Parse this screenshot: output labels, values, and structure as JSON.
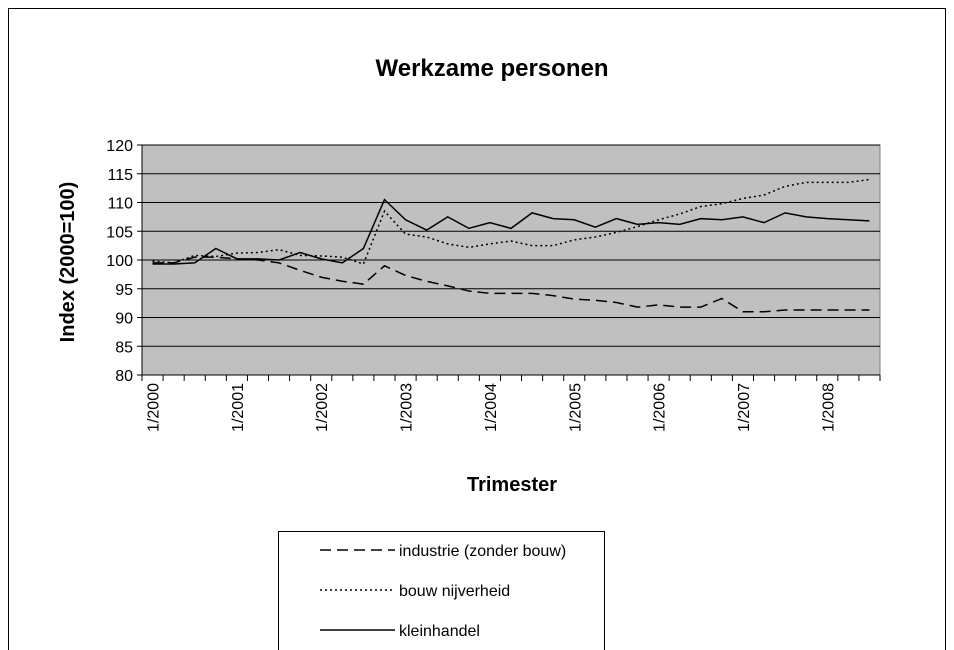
{
  "chart_data": {
    "type": "line",
    "title": "Werkzame personen",
    "x_label": "Trimester",
    "y_label": "Index (2000=100)",
    "categories": [
      "1/2000",
      null,
      null,
      null,
      "1/2001",
      null,
      null,
      null,
      "1/2002",
      null,
      null,
      null,
      "1/2003",
      null,
      null,
      null,
      "1/2004",
      null,
      null,
      null,
      "1/2005",
      null,
      null,
      null,
      "1/2006",
      null,
      null,
      null,
      "1/2007",
      null,
      null,
      null,
      "1/2008",
      null,
      null
    ],
    "series": [
      {
        "name": "industrie (zonder bouw)",
        "color": "#000000",
        "dash": "dashed",
        "values": [
          99.5,
          99.5,
          100.5,
          100.5,
          100.2,
          100,
          99.5,
          98.2,
          97,
          96.3,
          95.8,
          99,
          97.3,
          96.3,
          95.5,
          94.6,
          94.2,
          94.2,
          94.2,
          93.8,
          93.2,
          93,
          92.6,
          91.8,
          92.2,
          91.8,
          91.8,
          93.3,
          91,
          91,
          91.3,
          91.3,
          91.3,
          91.3,
          91.3
        ]
      },
      {
        "name": "bouw nijverheid",
        "color": "#000000",
        "dash": "dotted",
        "values": [
          99.8,
          99.5,
          100.8,
          100.6,
          101.2,
          101.3,
          101.8,
          100.8,
          100.7,
          100.5,
          99.3,
          108.5,
          104.5,
          104,
          102.8,
          102.2,
          102.8,
          103.3,
          102.5,
          102.5,
          103.5,
          104,
          104.8,
          105.8,
          107,
          108,
          109.3,
          109.8,
          110.7,
          111.3,
          112.8,
          113.5,
          113.5,
          113.5,
          114
        ]
      },
      {
        "name": "kleinhandel",
        "color": "#000000",
        "dash": "solid",
        "values": [
          99.3,
          99.3,
          99.5,
          102,
          100.2,
          100.2,
          100,
          101.3,
          100.2,
          99.5,
          102,
          110.5,
          107,
          105.2,
          107.5,
          105.5,
          106.5,
          105.5,
          108.2,
          107.2,
          107,
          105.7,
          107.2,
          106.2,
          106.5,
          106.2,
          107.2,
          107,
          107.5,
          106.5,
          108.2,
          107.5,
          107.2,
          107,
          106.8
        ]
      }
    ],
    "ylim": [
      80,
      120
    ],
    "yticks": [
      80,
      85,
      90,
      95,
      100,
      105,
      110,
      115,
      120
    ],
    "grid": true,
    "plot_background": "#c0c0c0",
    "legend": "bottom"
  }
}
